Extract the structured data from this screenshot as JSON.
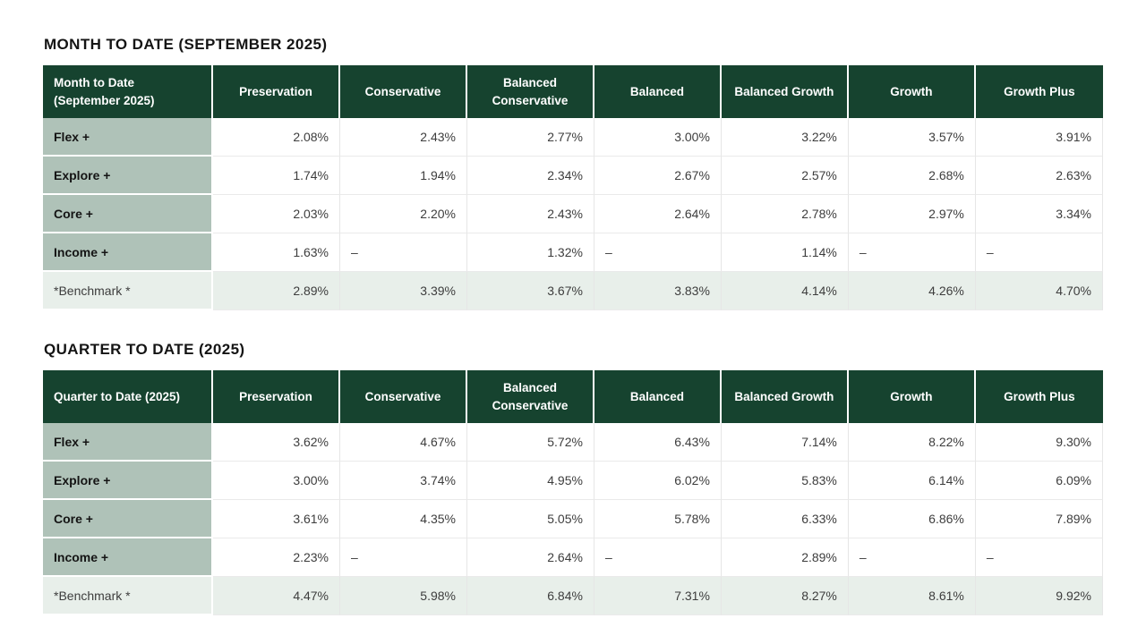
{
  "colors": {
    "header_bg": "#16432F",
    "row_label_bg": "#AFC2B8",
    "benchmark_bg": "#E8EFEA",
    "cell_border": "#E6E6E6",
    "header_text": "#FFFFFF",
    "title_text": "#141414",
    "value_text": "#3D3D3D"
  },
  "tables": [
    {
      "section_title": "MONTH TO DATE (SEPTEMBER 2025)",
      "corner_label": "Month to Date (September 2025)",
      "columns": [
        "Preservation",
        "Conservative",
        "Balanced Conservative",
        "Balanced",
        "Balanced Growth",
        "Growth",
        "Growth Plus"
      ],
      "rows": [
        {
          "label": "Flex +",
          "benchmark": false,
          "values": [
            "2.08%",
            "2.43%",
            "2.77%",
            "3.00%",
            "3.22%",
            "3.57%",
            "3.91%"
          ]
        },
        {
          "label": "Explore +",
          "benchmark": false,
          "values": [
            "1.74%",
            "1.94%",
            "2.34%",
            "2.67%",
            "2.57%",
            "2.68%",
            "2.63%"
          ]
        },
        {
          "label": "Core +",
          "benchmark": false,
          "values": [
            "2.03%",
            "2.20%",
            "2.43%",
            "2.64%",
            "2.78%",
            "2.97%",
            "3.34%"
          ]
        },
        {
          "label": "Income +",
          "benchmark": false,
          "values": [
            "1.63%",
            "–",
            "1.32%",
            "–",
            "1.14%",
            "–",
            "–"
          ]
        },
        {
          "label": "*Benchmark *",
          "benchmark": true,
          "values": [
            "2.89%",
            "3.39%",
            "3.67%",
            "3.83%",
            "4.14%",
            "4.26%",
            "4.70%"
          ]
        }
      ]
    },
    {
      "section_title": "QUARTER TO DATE (2025)",
      "corner_label": "Quarter to Date (2025)",
      "columns": [
        "Preservation",
        "Conservative",
        "Balanced Conservative",
        "Balanced",
        "Balanced Growth",
        "Growth",
        "Growth Plus"
      ],
      "rows": [
        {
          "label": "Flex +",
          "benchmark": false,
          "values": [
            "3.62%",
            "4.67%",
            "5.72%",
            "6.43%",
            "7.14%",
            "8.22%",
            "9.30%"
          ]
        },
        {
          "label": "Explore +",
          "benchmark": false,
          "values": [
            "3.00%",
            "3.74%",
            "4.95%",
            "6.02%",
            "5.83%",
            "6.14%",
            "6.09%"
          ]
        },
        {
          "label": "Core +",
          "benchmark": false,
          "values": [
            "3.61%",
            "4.35%",
            "5.05%",
            "5.78%",
            "6.33%",
            "6.86%",
            "7.89%"
          ]
        },
        {
          "label": "Income +",
          "benchmark": false,
          "values": [
            "2.23%",
            "–",
            "2.64%",
            "–",
            "2.89%",
            "–",
            "–"
          ]
        },
        {
          "label": "*Benchmark *",
          "benchmark": true,
          "values": [
            "4.47%",
            "5.98%",
            "6.84%",
            "7.31%",
            "8.27%",
            "8.61%",
            "9.92%"
          ]
        }
      ]
    }
  ]
}
